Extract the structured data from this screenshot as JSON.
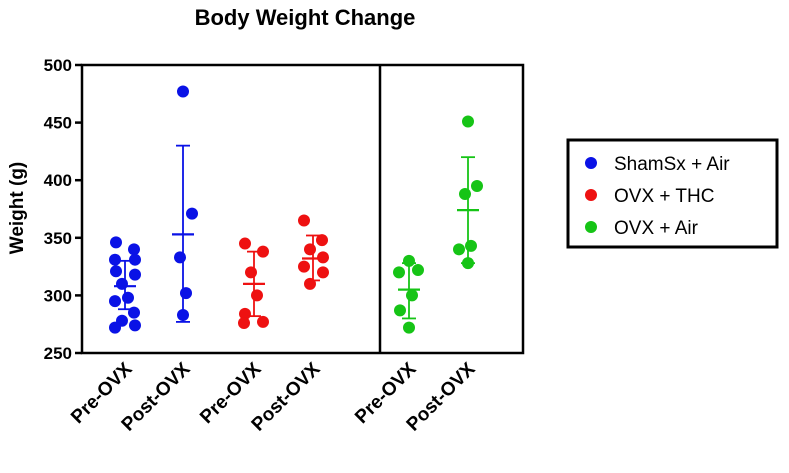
{
  "chart_data": {
    "type": "scatter",
    "title": "Body Weight Change",
    "xlabel": "",
    "ylabel": "Weight (g)",
    "ylim": [
      250,
      500
    ],
    "yticks": [
      250,
      300,
      350,
      400,
      450,
      500
    ],
    "categories": [
      "Pre-OVX",
      "Post-OVX",
      "Pre-OVX",
      "Post-OVX",
      "Pre-OVX",
      "Post-OVX"
    ],
    "legend_position": "right",
    "groups": [
      {
        "name": "ShamSx + Air",
        "color": "#0a12e6",
        "columns": [
          {
            "category_index": 0,
            "mean": 308,
            "sd_low": 288,
            "sd_high": 330,
            "points": [
              346,
              340,
              331,
              331,
              321,
              318,
              310,
              298,
              295,
              285,
              278,
              274,
              272
            ]
          },
          {
            "category_index": 1,
            "mean": 353,
            "sd_low": 277,
            "sd_high": 430,
            "points": [
              477,
              371,
              333,
              302,
              283
            ]
          }
        ]
      },
      {
        "name": "OVX + THC",
        "color": "#ee1111",
        "columns": [
          {
            "category_index": 2,
            "mean": 310,
            "sd_low": 282,
            "sd_high": 338,
            "points": [
              345,
              338,
              320,
              300,
              284,
              277,
              276
            ]
          },
          {
            "category_index": 3,
            "mean": 332,
            "sd_low": 313,
            "sd_high": 352,
            "points": [
              365,
              348,
              340,
              333,
              325,
              320,
              310
            ]
          }
        ]
      },
      {
        "name": "OVX + Air",
        "color": "#16c416",
        "columns": [
          {
            "category_index": 4,
            "mean": 305,
            "sd_low": 280,
            "sd_high": 328,
            "points": [
              330,
              322,
              320,
              300,
              287,
              272
            ]
          },
          {
            "category_index": 5,
            "mean": 374,
            "sd_low": 328,
            "sd_high": 420,
            "points": [
              451,
              395,
              388,
              343,
              340,
              328
            ]
          }
        ]
      }
    ]
  }
}
